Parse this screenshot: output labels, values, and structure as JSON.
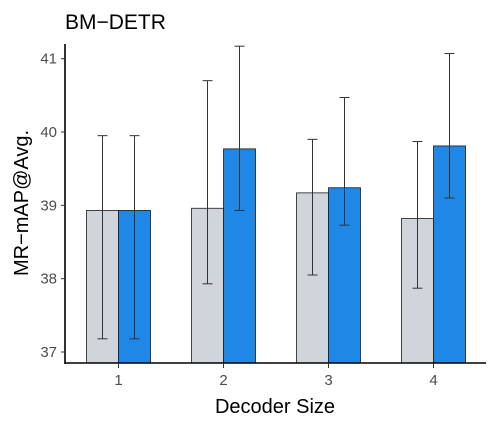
{
  "chart_data": {
    "type": "bar",
    "title": "BM−DETR",
    "xlabel": "Decoder Size",
    "ylabel": "MR−mAP@Avg.",
    "categories": [
      "1",
      "2",
      "3",
      "4"
    ],
    "ylim": [
      36.85,
      41.2
    ],
    "yticks": [
      "37",
      "38",
      "39",
      "40",
      "41"
    ],
    "grid": false,
    "legend": "none",
    "series": [
      {
        "color": "#d0d4db",
        "values": [
          38.93,
          38.96,
          39.17,
          38.82
        ],
        "error_low": [
          37.18,
          37.93,
          38.05,
          37.87
        ],
        "error_high": [
          39.95,
          40.7,
          39.9,
          39.87
        ]
      },
      {
        "color": "#1f87e5",
        "values": [
          38.93,
          39.77,
          39.24,
          39.81
        ],
        "error_low": [
          37.18,
          38.93,
          38.73,
          39.1
        ],
        "error_high": [
          39.95,
          41.17,
          40.47,
          41.07
        ]
      }
    ]
  }
}
